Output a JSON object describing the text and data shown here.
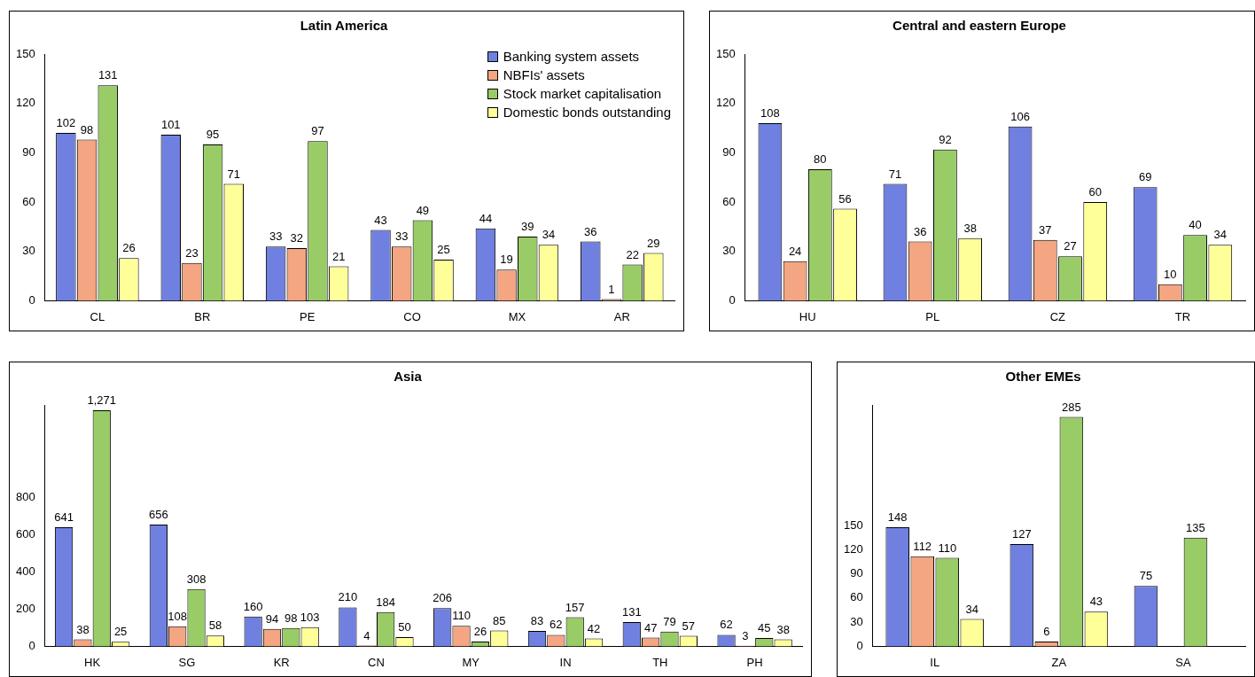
{
  "chart_data": [
    {
      "type": "bar",
      "title": "Latin America",
      "categories": [
        "CL",
        "BR",
        "PE",
        "CO",
        "MX",
        "AR"
      ],
      "ylim": [
        0,
        150
      ],
      "yticks": [
        0,
        30,
        60,
        90,
        120,
        150
      ],
      "grid": false,
      "legend": "top right",
      "data_labels": true,
      "series": [
        {
          "name": "Banking system assets",
          "color": "#7080e0",
          "values": [
            102,
            101,
            33,
            43,
            44,
            36
          ]
        },
        {
          "name": "NBFIs' assets",
          "color": "#f4a582",
          "values": [
            98,
            23,
            32,
            33,
            19,
            1
          ]
        },
        {
          "name": "Stock market capitalisation",
          "color": "#99cc66",
          "values": [
            131,
            95,
            97,
            49,
            39,
            22
          ]
        },
        {
          "name": "Domestic bonds outstanding",
          "color": "#ffff99",
          "values": [
            26,
            71,
            21,
            25,
            34,
            29
          ]
        }
      ]
    },
    {
      "type": "bar",
      "title": "Central and eastern Europe",
      "categories": [
        "HU",
        "PL",
        "CZ",
        "TR"
      ],
      "ylim": [
        0,
        150
      ],
      "yticks": [
        0,
        30,
        60,
        90,
        120,
        150
      ],
      "grid": false,
      "data_labels": true,
      "series": [
        {
          "color": "#7080e0",
          "values": [
            108,
            71,
            106,
            69
          ]
        },
        {
          "color": "#f4a582",
          "values": [
            24,
            36,
            37,
            10
          ]
        },
        {
          "color": "#99cc66",
          "values": [
            80,
            92,
            27,
            40
          ]
        },
        {
          "color": "#ffff99",
          "values": [
            56,
            38,
            60,
            34
          ]
        }
      ]
    },
    {
      "type": "bar",
      "title": "Asia",
      "categories": [
        "HK",
        "SG",
        "KR",
        "CN",
        "MY",
        "IN",
        "TH",
        "PH"
      ],
      "ylim": [
        0,
        1300
      ],
      "yticks": [
        0,
        200,
        400,
        600,
        800
      ],
      "grid": false,
      "series": [
        {
          "color": "#7080e0",
          "values": [
            641,
            656,
            160,
            210,
            206,
            83,
            131,
            62
          ],
          "value_labels": [
            "641",
            "656",
            "160",
            "210",
            "206",
            "83",
            "131",
            "62"
          ]
        },
        {
          "color": "#f4a582",
          "values": [
            38,
            108,
            94,
            4,
            110,
            62,
            47,
            3
          ],
          "value_labels": [
            "38",
            "108",
            "94",
            "4",
            "110",
            "62",
            "47",
            "3"
          ]
        },
        {
          "color": "#99cc66",
          "values": [
            1271,
            308,
            98,
            184,
            26,
            157,
            79,
            45
          ],
          "value_labels": [
            "1,271",
            "308",
            "98",
            "184",
            "26",
            "157",
            "79",
            "45"
          ]
        },
        {
          "color": "#ffff99",
          "values": [
            25,
            58,
            103,
            50,
            85,
            42,
            57,
            38
          ],
          "value_labels": [
            "25",
            "58",
            "103",
            "50",
            "85",
            "42",
            "57",
            "38"
          ]
        }
      ]
    },
    {
      "type": "bar",
      "title": "Other EMEs",
      "categories": [
        "IL",
        "ZA",
        "SA"
      ],
      "ylim": [
        0,
        300
      ],
      "yticks": [
        0,
        30,
        60,
        90,
        120,
        150
      ],
      "grid": false,
      "data_labels": true,
      "series": [
        {
          "color": "#7080e0",
          "values": [
            148,
            127,
            75
          ]
        },
        {
          "color": "#f4a582",
          "values": [
            112,
            6,
            null
          ]
        },
        {
          "color": "#99cc66",
          "values": [
            110,
            285,
            135
          ]
        },
        {
          "color": "#ffff99",
          "values": [
            34,
            43,
            null
          ]
        }
      ]
    }
  ]
}
